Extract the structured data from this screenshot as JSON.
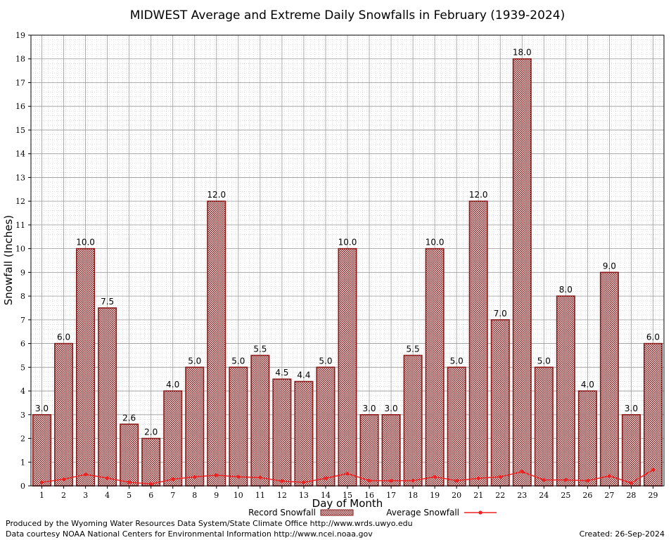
{
  "chart_data": {
    "type": "bar",
    "title": "MIDWEST Average and Extreme Daily Snowfalls in February (1939-2024)",
    "xlabel": "Day of Month",
    "ylabel": "Snowfall (Inches)",
    "ylim": [
      0,
      19
    ],
    "grid": true,
    "categories": [
      "1",
      "2",
      "3",
      "4",
      "5",
      "6",
      "7",
      "8",
      "9",
      "10",
      "11",
      "12",
      "13",
      "14",
      "15",
      "16",
      "17",
      "18",
      "19",
      "20",
      "21",
      "22",
      "23",
      "24",
      "25",
      "26",
      "27",
      "28",
      "29"
    ],
    "series": [
      {
        "name": "Record Snowfall",
        "kind": "bar",
        "color": "#8b1a1a",
        "values": [
          3.0,
          6.0,
          10.0,
          7.5,
          2.6,
          2.0,
          4.0,
          5.0,
          12.0,
          5.0,
          5.5,
          4.5,
          4.4,
          5.0,
          10.0,
          3.0,
          3.0,
          5.5,
          10.0,
          5.0,
          12.0,
          7.0,
          18.0,
          5.0,
          8.0,
          4.0,
          9.0,
          3.0,
          6.0
        ],
        "labels": [
          "3.0",
          "6.0",
          "10.0",
          "7.5",
          "2.6",
          "2.0",
          "4.0",
          "5.0",
          "12.0",
          "5.0",
          "5.5",
          "4.5",
          "4.4",
          "5.0",
          "10.0",
          "3.0",
          "3.0",
          "5.5",
          "10.0",
          "5.0",
          "12.0",
          "7.0",
          "18.0",
          "5.0",
          "8.0",
          "4.0",
          "9.0",
          "3.0",
          "6.0"
        ]
      },
      {
        "name": "Average Snowfall",
        "kind": "line",
        "color": "#ee2222",
        "values": [
          0.15,
          0.28,
          0.48,
          0.33,
          0.15,
          0.08,
          0.28,
          0.38,
          0.45,
          0.38,
          0.35,
          0.2,
          0.15,
          0.32,
          0.52,
          0.22,
          0.22,
          0.22,
          0.38,
          0.22,
          0.32,
          0.38,
          0.6,
          0.25,
          0.25,
          0.22,
          0.42,
          0.12,
          0.68
        ]
      }
    ],
    "legend": "bottom-center"
  },
  "footer": {
    "produced_by": "Produced by the Wyoming Water Resources Data System/State Climate Office http://www.wrds.uwyo.edu",
    "courtesy": "Data courtesy NOAA National Centers for Environmental Information http://www.ncei.noaa.gov",
    "created": "Created:  26-Sep-2024"
  }
}
